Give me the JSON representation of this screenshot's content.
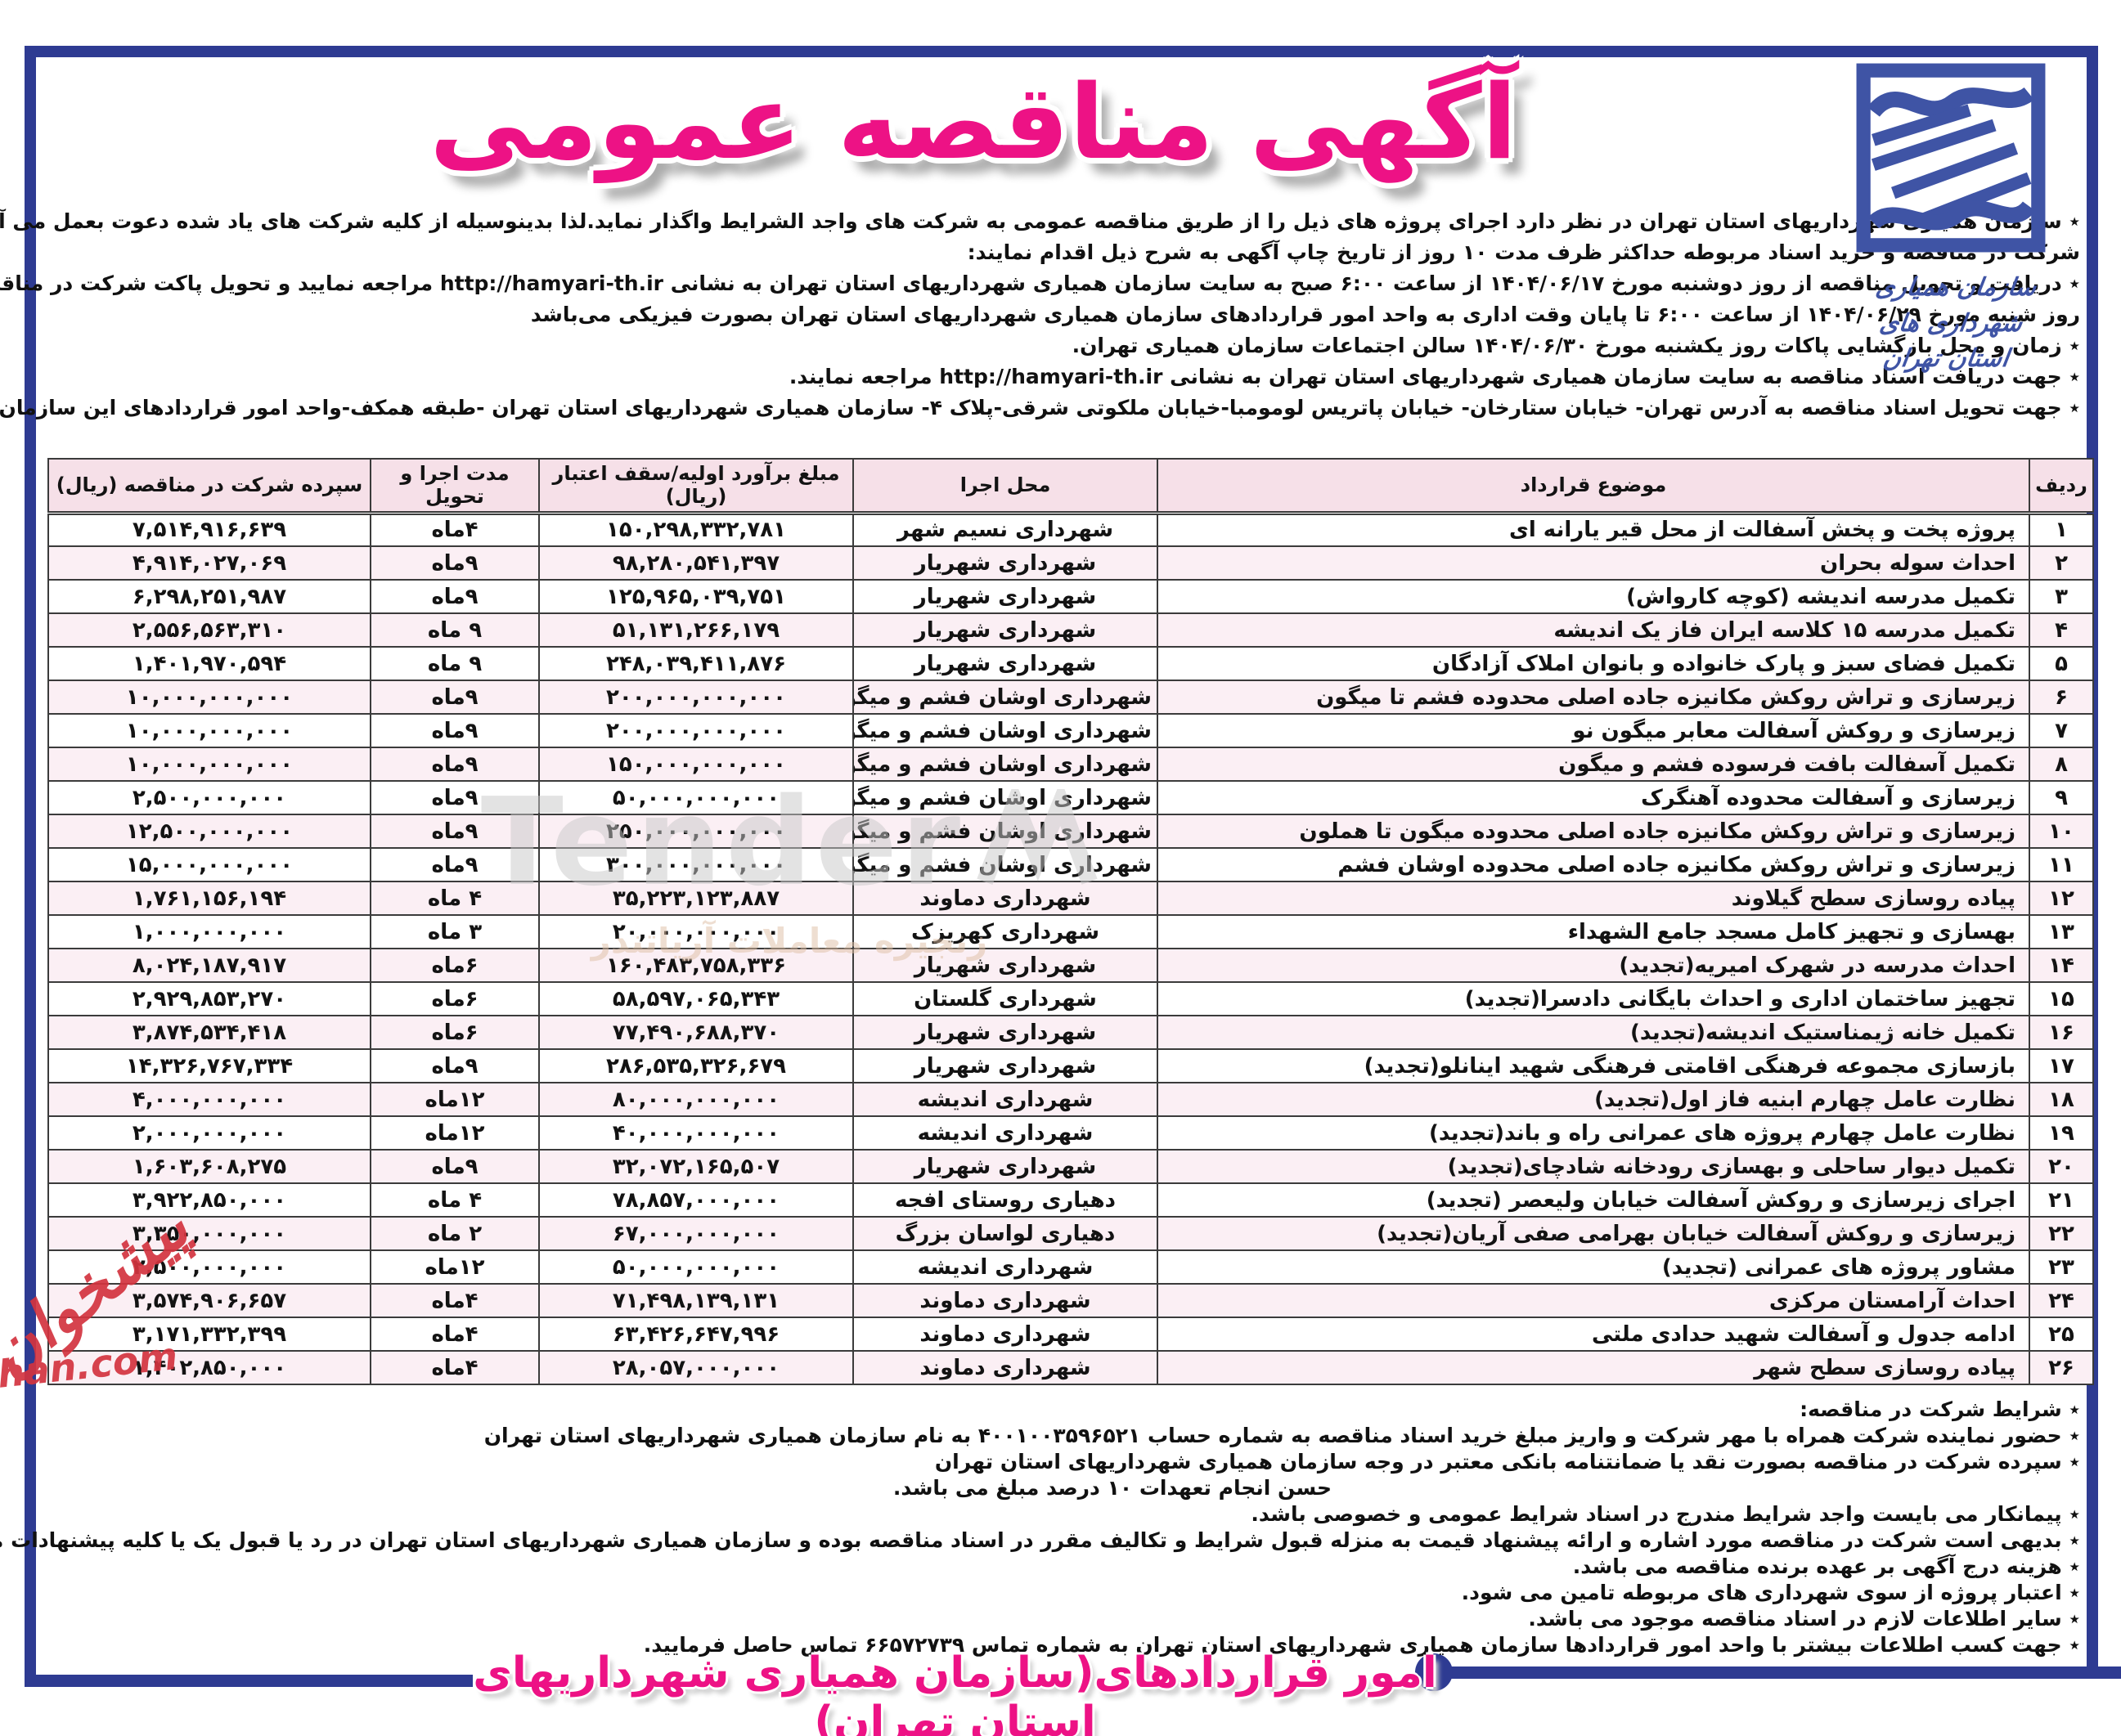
{
  "colors": {
    "frame_navy": "#2e3b92",
    "title_pink": "#ed1285",
    "logo_blue": "#3f54a5",
    "header_row_bg": "#f6e0e8",
    "alt_row_bg": "#fbeff4"
  },
  "logo": {
    "caption_line1": "سازمان همیاری شهرداری های",
    "caption_line2": "استان تهران"
  },
  "page": {
    "title": "آگهی مناقصه عمومی",
    "bottom_banner": "امور قراردادهای(سازمان همیاری شهرداریهای استان تهران)"
  },
  "intro": {
    "lines": [
      "٭ سازمان همیاری شهرداریهای استان تهران در نظر دارد اجرای پروژه های ذیل را از طریق مناقصه عمومی به شرکت های واجد الشرایط واگذار نماید.لذا بدینوسیله از کلیه شرکت های یاد شده دعوت بعمل می آید جهت",
      "شرکت در مناقصه و خرید اسناد مربوطه حداکثر ظرف مدت ۱۰ روز از تاریخ چاپ آگهی به شرح ذیل اقدام نمایند:",
      "٭ دریافت و تحویل مناقصه از روز دوشنبه مورخ ۱۴۰۴/۰۶/۱۷ از ساعت ۶:۰۰ صبح به سایت سازمان همیاری شهرداریهای استان تهران به نشانی http://hamyari-th.ir مراجعه نمایید و تحویل پاکت شرکت در مناقصه",
      "روز شنبه مورخ ۱۴۰۴/۰۶/۲۹ از ساعت ۶:۰۰ تا پایان وقت اداری به واحد امور قراردادهای سازمان همیاری شهرداریهای استان تهران بصورت فیزیکی می‌باشد",
      "٭ زمان و محل بازگشایی پاکات روز یکشنبه مورخ ۱۴۰۴/۰۶/۳۰ سالن اجتماعات سازمان همیاری تهران.",
      "٭ جهت دریافت اسناد مناقصه به سایت سازمان همیاری شهرداریهای استان تهران به نشانی http://hamyari-th.ir مراجعه نمایند.",
      "٭ جهت تحویل اسناد مناقصه به آدرس تهران- خیابان ستارخان- خیابان پاتریس لومومبا-خیابان ملکوتی شرقی-پلاک ۴- سازمان همیاری شهرداریهای استان تهران -طبقه همکف-واحد امور قراردادهای این سازمان مراجعه نمایند."
    ]
  },
  "table": {
    "headers": {
      "row": "ردیف",
      "subject": "موضوع قرارداد",
      "location": "محل اجرا",
      "estimate": "مبلغ برآورد اولیه/سقف اعتبار (ریال)",
      "duration": "مدت اجرا و تحویل",
      "deposit": "سپرده شرکت در مناقصه (ریال)"
    },
    "rows": [
      {
        "row": "۱",
        "subject": "پروژه پخت و پخش آسفالت از محل قیر یارانه ای",
        "location": "شهرداری نسیم شهر",
        "estimate": "۱۵۰,۲۹۸,۳۳۲,۷۸۱",
        "duration": "۴ماه",
        "deposit": "۷,۵۱۴,۹۱۶,۶۳۹"
      },
      {
        "row": "۲",
        "subject": "احداث سوله بحران",
        "location": "شهرداری شهریار",
        "estimate": "۹۸,۲۸۰,۵۴۱,۳۹۷",
        "duration": "۹ماه",
        "deposit": "۴,۹۱۴,۰۲۷,۰۶۹"
      },
      {
        "row": "۳",
        "subject": "تکمیل مدرسه اندیشه (کوچه کارواش)",
        "location": "شهرداری شهریار",
        "estimate": "۱۲۵,۹۶۵,۰۳۹,۷۵۱",
        "duration": "۹ماه",
        "deposit": "۶,۲۹۸,۲۵۱,۹۸۷"
      },
      {
        "row": "۴",
        "subject": "تکمیل مدرسه ۱۵ کلاسه ایران فاز یک اندیشه",
        "location": "شهرداری شهریار",
        "estimate": "۵۱,۱۳۱,۲۶۶,۱۷۹",
        "duration": "۹ ماه",
        "deposit": "۲,۵۵۶,۵۶۳,۳۱۰"
      },
      {
        "row": "۵",
        "subject": "تکمیل فضای سبز و پارک خانواده و بانوان املاک آزادگان",
        "location": "شهرداری شهریار",
        "estimate": "۲۴۸,۰۳۹,۴۱۱,۸۷۶",
        "duration": "۹ ماه",
        "deposit": "۱,۴۰۱,۹۷۰,۵۹۴"
      },
      {
        "row": "۶",
        "subject": "زیرسازی و تراش روکش مکانیزه جاده اصلی محدوده فشم تا میگون",
        "location": "شهرداری اوشان فشم و میگون",
        "estimate": "۲۰۰,۰۰۰,۰۰۰,۰۰۰",
        "duration": "۹ماه",
        "deposit": "۱۰,۰۰۰,۰۰۰,۰۰۰"
      },
      {
        "row": "۷",
        "subject": "زیرسازی و روکش آسفالت معابر میگون نو",
        "location": "شهرداری اوشان فشم و میگون",
        "estimate": "۲۰۰,۰۰۰,۰۰۰,۰۰۰",
        "duration": "۹ماه",
        "deposit": "۱۰,۰۰۰,۰۰۰,۰۰۰"
      },
      {
        "row": "۸",
        "subject": "تکمیل آسفالت بافت فرسوده فشم و میگون",
        "location": "شهرداری اوشان فشم و میگون",
        "estimate": "۱۵۰,۰۰۰,۰۰۰,۰۰۰",
        "duration": "۹ماه",
        "deposit": "۱۰,۰۰۰,۰۰۰,۰۰۰"
      },
      {
        "row": "۹",
        "subject": "زیرسازی و آسفالت محدوده آهنگرک",
        "location": "شهرداری اوشان فشم و میگون",
        "estimate": "۵۰,۰۰۰,۰۰۰,۰۰۰",
        "duration": "۹ماه",
        "deposit": "۲,۵۰۰,۰۰۰,۰۰۰"
      },
      {
        "row": "۱۰",
        "subject": "زیرسازی و تراش روکش مکانیزه جاده اصلی محدوده میگون تا هملون",
        "location": "شهرداری اوشان فشم و میگون",
        "estimate": "۲۵۰,۰۰۰,۰۰۰,۰۰۰",
        "duration": "۹ماه",
        "deposit": "۱۲,۵۰۰,۰۰۰,۰۰۰"
      },
      {
        "row": "۱۱",
        "subject": "زیرسازی و تراش روکش مکانیزه جاده اصلی محدوده اوشان فشم",
        "location": "شهرداری اوشان فشم و میگون",
        "estimate": "۳۰۰,۰۰۰,۰۰۰,۰۰۰",
        "duration": "۹ماه",
        "deposit": "۱۵,۰۰۰,۰۰۰,۰۰۰"
      },
      {
        "row": "۱۲",
        "subject": "پیاده روسازی سطح گیلاوند",
        "location": "شهرداری دماوند",
        "estimate": "۳۵,۲۲۳,۱۲۳,۸۸۷",
        "duration": "۴ ماه",
        "deposit": "۱,۷۶۱,۱۵۶,۱۹۴"
      },
      {
        "row": "۱۳",
        "subject": "بهسازی و تجهیز کامل مسجد جامع الشهداء",
        "location": "شهرداری کهریزک",
        "estimate": "۲۰,۰۰۰,۰۰۰,۰۰۰",
        "duration": "۳ ماه",
        "deposit": "۱,۰۰۰,۰۰۰,۰۰۰"
      },
      {
        "row": "۱۴",
        "subject": "احداث مدرسه در شهرک امیریه(تجدید)",
        "location": "شهرداری شهریار",
        "estimate": "۱۶۰,۴۸۳,۷۵۸,۳۳۶",
        "duration": "۶ماه",
        "deposit": "۸,۰۲۴,۱۸۷,۹۱۷"
      },
      {
        "row": "۱۵",
        "subject": "تجهیز ساختمان اداری و احداث بایگانی دادسرا(تجدید)",
        "location": "شهرداری گلستان",
        "estimate": "۵۸,۵۹۷,۰۶۵,۳۴۳",
        "duration": "۶ماه",
        "deposit": "۲,۹۲۹,۸۵۳,۲۷۰"
      },
      {
        "row": "۱۶",
        "subject": "تکمیل خانه ژیمناستیک اندیشه(تجدید)",
        "location": "شهرداری شهریار",
        "estimate": "۷۷,۴۹۰,۶۸۸,۳۷۰",
        "duration": "۶ماه",
        "deposit": "۳,۸۷۴,۵۳۴,۴۱۸"
      },
      {
        "row": "۱۷",
        "subject": "بازسازی مجموعه فرهنگی اقامتی فرهنگی شهید اینانلو(تجدید)",
        "location": "شهرداری شهریار",
        "estimate": "۲۸۶,۵۳۵,۳۲۶,۶۷۹",
        "duration": "۹ماه",
        "deposit": "۱۴,۳۲۶,۷۶۷,۳۳۴"
      },
      {
        "row": "۱۸",
        "subject": "نظارت عامل چهارم ابنیه فاز اول(تجدید)",
        "location": "شهرداری اندیشه",
        "estimate": "۸۰,۰۰۰,۰۰۰,۰۰۰",
        "duration": "۱۲ماه",
        "deposit": "۴,۰۰۰,۰۰۰,۰۰۰"
      },
      {
        "row": "۱۹",
        "subject": "نظارت عامل چهارم پروژه های عمرانی راه و باند(تجدید)",
        "location": "شهرداری اندیشه",
        "estimate": "۴۰,۰۰۰,۰۰۰,۰۰۰",
        "duration": "۱۲ماه",
        "deposit": "۲,۰۰۰,۰۰۰,۰۰۰"
      },
      {
        "row": "۲۰",
        "subject": "تکمیل دیوار ساحلی و بهسازی رودخانه شادچای(تجدید)",
        "location": "شهرداری شهریار",
        "estimate": "۳۲,۰۷۲,۱۶۵,۵۰۷",
        "duration": "۹ماه",
        "deposit": "۱,۶۰۳,۶۰۸,۲۷۵"
      },
      {
        "row": "۲۱",
        "subject": "اجرای زیرسازی و روکش آسفالت خیابان ولیعصر (تجدید)",
        "location": "دهیاری روستای افجه",
        "estimate": "۷۸,۸۵۷,۰۰۰,۰۰۰",
        "duration": "۴ ماه",
        "deposit": "۳,۹۲۲,۸۵۰,۰۰۰"
      },
      {
        "row": "۲۲",
        "subject": "زیرسازی و روکش آسفالت خیابان بهرامی صفی آریان(تجدید)",
        "location": "دهیاری لواسان بزرگ",
        "estimate": "۶۷,۰۰۰,۰۰۰,۰۰۰",
        "duration": "۲ ماه",
        "deposit": "۳,۳۵۰,۰۰۰,۰۰۰"
      },
      {
        "row": "۲۳",
        "subject": "مشاور پروژه های عمرانی (تجدید)",
        "location": "شهرداری اندیشه",
        "estimate": "۵۰,۰۰۰,۰۰۰,۰۰۰",
        "duration": "۱۲ماه",
        "deposit": "۲,۵۰۰,۰۰۰,۰۰۰"
      },
      {
        "row": "۲۴",
        "subject": "احداث آرامستان مرکزی",
        "location": "شهرداری دماوند",
        "estimate": "۷۱,۴۹۸,۱۳۹,۱۳۱",
        "duration": "۴ماه",
        "deposit": "۳,۵۷۴,۹۰۶,۶۵۷"
      },
      {
        "row": "۲۵",
        "subject": "ادامه جدول و آسفالت شهید حدادی ملتی",
        "location": "شهرداری دماوند",
        "estimate": "۶۳,۴۲۶,۶۴۷,۹۹۶",
        "duration": "۴ماه",
        "deposit": "۳,۱۷۱,۳۳۲,۳۹۹"
      },
      {
        "row": "۲۶",
        "subject": "پیاده روسازی سطح شهر",
        "location": "شهرداری دماوند",
        "estimate": "۲۸,۰۵۷,۰۰۰,۰۰۰",
        "duration": "۴ماه",
        "deposit": "۱,۴۰۲,۸۵۰,۰۰۰"
      }
    ]
  },
  "conditions": {
    "lines": [
      "٭ شرایط شرکت در مناقصه:",
      "٭ حضور نماینده شرکت همراه با مهر شرکت و واریز مبلغ خرید اسناد مناقصه به شماره حساب ۴۰۰۱۰۰۳۵۹۶۵۲۱ به نام سازمان همیاری شهرداریهای استان تهران",
      "٭ سپرده شرکت در مناقصه بصورت نقد یا ضمانتنامه بانکی معتبر در وجه سازمان همیاری شهرداریهای استان تهران",
      "حسن انجام تعهدات ۱۰ درصد مبلغ می باشد.",
      "٭ پیمانکار می بایست واجد شرایط مندرج در اسناد شرایط عمومی و خصوصی باشد.",
      "٭ بدیهی است شرکت در مناقصه مورد اشاره و ارائه پیشنهاد قیمت به منزله قبول شرایط و تکالیف مقرر در اسناد مناقصه بوده و سازمان همیاری شهرداریهای استان تهران در رد یا قبول یک یا کلیه پیشنهادات مختار است.",
      "٭ هزینه درج آگهی بر عهده برنده مناقصه می باشد.",
      "٭ اعتبار پروژه از سوی شهرداری های مربوطه تامین می شود.",
      "٭ سایر اطلاعات لازم در اسناد مناقصه موجود می باشد.",
      "٭ جهت کسب اطلاعات بیشتر با واحد امور قراردادها سازمان همیاری شهرداریهای استان تهران به شماره تماس ۶۶۵۷۲۷۳۹ تماس حاصل فرمایید."
    ]
  },
  "watermarks": {
    "center_latin": "Tender",
    "center_persian": "زنجیره معاملات آریاتندر",
    "side_persian": "پیشخوان",
    "side_domain": "khan.com"
  }
}
